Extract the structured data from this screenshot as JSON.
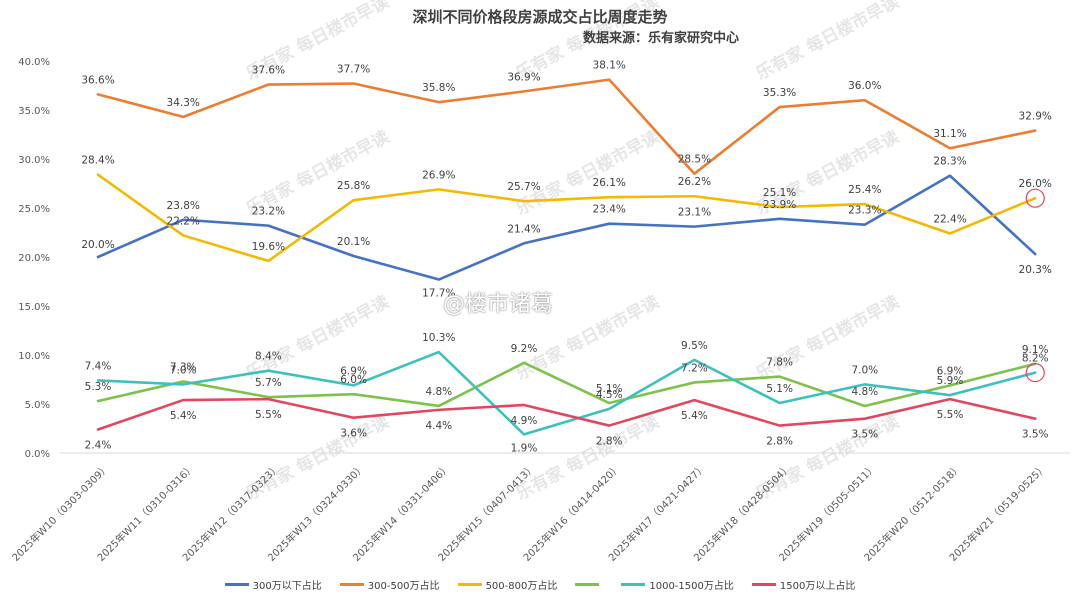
{
  "page": {
    "weibo_watermark": "@楼市诸葛",
    "bg_watermark_1": "乐有家",
    "bg_watermark_2": "每日楼市早读"
  },
  "chart_data": {
    "type": "line",
    "title": "深圳不同价格段房源成交占比周度走势",
    "subtitle": "数据来源：乐有家研究中心",
    "xlabel": "",
    "ylabel": "",
    "ylim": [
      0,
      40
    ],
    "ytick_values": [
      0,
      5,
      10,
      15,
      20,
      25,
      30,
      35,
      40
    ],
    "ytick_labels": [
      "0.0%",
      "5.0%",
      "10.0%",
      "15.0%",
      "20.0%",
      "25.0%",
      "30.0%",
      "35.0%",
      "40.0%"
    ],
    "grid": false,
    "legend_position": "bottom",
    "categories": [
      "2025年W10（0303-0309）",
      "2025年W11（0310-0316）",
      "2025年W12（0317-0323）",
      "2025年W13（0324-0330）",
      "2025年W14（0331-0406）",
      "2025年W15（0407-0413）",
      "2025年W16（0414-0420）",
      "2025年W17（0421-0427）",
      "2025年W18（0428-0504）",
      "2025年W19（0505-0511）",
      "2025年W20（0512-0518）",
      "2025年W21（0519-0525）"
    ],
    "series": [
      {
        "name": "300万以下占比",
        "color": "#4472C4",
        "values": [
          20.0,
          23.8,
          23.2,
          20.1,
          17.7,
          21.4,
          23.4,
          23.1,
          23.9,
          23.3,
          28.3,
          20.3
        ],
        "labels": [
          "20.0%",
          "23.8%",
          "23.2%",
          "20.1%",
          "17.7%",
          "21.4%",
          "23.4%",
          "23.1%",
          "23.9%",
          "23.3%",
          "28.3%",
          "20.3%"
        ]
      },
      {
        "name": "300-500万占比",
        "color": "#ED7D31",
        "values": [
          36.6,
          34.3,
          37.6,
          37.7,
          35.8,
          36.9,
          38.1,
          28.5,
          35.3,
          36.0,
          31.1,
          32.9
        ],
        "labels": [
          "36.6%",
          "34.3%",
          "37.6%",
          "37.7%",
          "35.8%",
          "36.9%",
          "38.1%",
          "28.5%",
          "35.3%",
          "36.0%",
          "31.1%",
          "32.9%"
        ]
      },
      {
        "name": "500-800万占比",
        "color": "#F2BA02",
        "values": [
          28.4,
          22.2,
          19.6,
          25.8,
          26.9,
          25.7,
          26.1,
          26.2,
          25.1,
          25.4,
          22.4,
          26.0
        ],
        "labels": [
          "28.4%",
          "22.2%",
          "19.6%",
          "25.8%",
          "26.9%",
          "25.7%",
          "26.1%",
          "26.2%",
          "25.1%",
          "25.4%",
          "22.4%",
          "26.0%"
        ]
      },
      {
        "name": "",
        "color": "#7DC24B",
        "values": [
          5.3,
          7.3,
          5.7,
          6.0,
          4.8,
          9.2,
          5.1,
          7.2,
          7.8,
          4.8,
          6.9,
          9.1
        ],
        "labels": [
          "5.3%",
          "7.3%",
          "5.7%",
          "6.0%",
          "4.8%",
          "9.2%",
          "5.1%",
          "7.2%",
          "7.8%",
          "4.8%",
          "6.9%",
          "9.1%"
        ]
      },
      {
        "name": "1000-1500万占比",
        "color": "#3EC1BC",
        "values": [
          7.4,
          7.0,
          8.4,
          6.9,
          10.3,
          1.9,
          4.5,
          9.5,
          5.1,
          7.0,
          5.9,
          8.2
        ],
        "labels": [
          "7.4%",
          "7.0%",
          "8.4%",
          "6.9%",
          "10.3%",
          "1.9%",
          "4.5%",
          "9.5%",
          "5.1%",
          "7.0%",
          "5.9%",
          "8.2%"
        ]
      },
      {
        "name": "1500万以上占比",
        "color": "#E3475F",
        "values": [
          2.4,
          5.4,
          5.5,
          3.6,
          4.4,
          4.9,
          2.8,
          5.4,
          2.8,
          3.5,
          5.5,
          3.5
        ],
        "labels": [
          "2.4%",
          "5.4%",
          "5.5%",
          "3.6%",
          "4.4%",
          "4.9%",
          "2.8%",
          "5.4%",
          "2.8%",
          "3.5%",
          "5.5%",
          "3.5%"
        ]
      }
    ],
    "highlight_circles": [
      {
        "series": 2,
        "index": 11,
        "color": "#E3475F"
      },
      {
        "series": 4,
        "index": 11,
        "color": "#E3475F"
      }
    ]
  }
}
